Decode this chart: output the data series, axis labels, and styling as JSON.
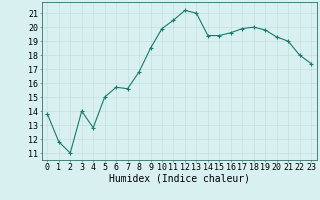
{
  "x": [
    0,
    1,
    2,
    3,
    4,
    5,
    6,
    7,
    8,
    9,
    10,
    11,
    12,
    13,
    14,
    15,
    16,
    17,
    18,
    19,
    20,
    21,
    22,
    23
  ],
  "y": [
    13.8,
    11.8,
    11.0,
    14.0,
    12.8,
    15.0,
    15.7,
    15.6,
    16.8,
    18.5,
    19.9,
    20.5,
    21.2,
    21.0,
    19.4,
    19.4,
    19.6,
    19.9,
    20.0,
    19.8,
    19.3,
    19.0,
    18.0,
    17.4
  ],
  "xlabel": "Humidex (Indice chaleur)",
  "ylim": [
    10.5,
    21.8
  ],
  "xlim": [
    -0.5,
    23.5
  ],
  "yticks": [
    11,
    12,
    13,
    14,
    15,
    16,
    17,
    18,
    19,
    20,
    21
  ],
  "xticks": [
    0,
    1,
    2,
    3,
    4,
    5,
    6,
    7,
    8,
    9,
    10,
    11,
    12,
    13,
    14,
    15,
    16,
    17,
    18,
    19,
    20,
    21,
    22,
    23
  ],
  "line_color": "#1a7a6e",
  "marker_color": "#1a7a6e",
  "bg_color": "#d8f0f0",
  "grid_color": "#c0dada",
  "axis_color": "#2e6e6e",
  "tick_label_fontsize": 6.0,
  "xlabel_fontsize": 7.0
}
